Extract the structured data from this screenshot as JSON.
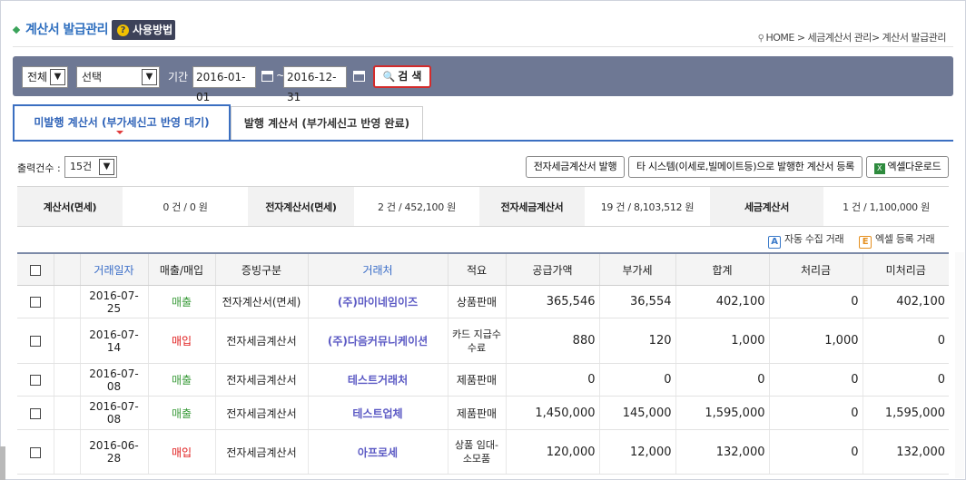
{
  "header": {
    "title": "계산서 발급관리",
    "help_label": "사용방법",
    "breadcrumb": [
      "HOME",
      "세금계산서 관리",
      "계산서 발급관리"
    ]
  },
  "search": {
    "type_select": "전체",
    "option_select": "선택",
    "period_label": "기간 :",
    "date_from": "2016-01-01",
    "date_to": "2016-12-31",
    "search_label": "검 색"
  },
  "tabs": [
    {
      "label": "미발행 계산서 (부가세신고 반영 대기)",
      "active": true
    },
    {
      "label": "발행 계산서 (부가세신고 반영 완료)",
      "active": false
    }
  ],
  "controls": {
    "count_label": "출력건수 :",
    "count_value": "15건",
    "btn_issue": "전자세금계산서 발행",
    "btn_register": "타 시스템(이세로,빌메이트등)으로 발행한 계산서 등록",
    "btn_excel": "엑셀다운로드"
  },
  "summary": [
    {
      "key": "계산서(면세)",
      "value": "0 건 / 0 원"
    },
    {
      "key": "전자계산서(면세)",
      "value": "2 건 / 452,100 원"
    },
    {
      "key": "전자세금계산서",
      "value": "19 건 / 8,103,512 원"
    },
    {
      "key": "세금계산서",
      "value": "1 건 / 1,100,000 원"
    }
  ],
  "legend": {
    "a_letter": "A",
    "a_label": "자동 수집 거래",
    "e_letter": "E",
    "e_label": "엑셀 등록 거래"
  },
  "table": {
    "headers": [
      "거래일자",
      "매출/매입",
      "증빙구분",
      "거래처",
      "적요",
      "공급가액",
      "부가세",
      "합계",
      "처리금",
      "미처리금"
    ],
    "rows": [
      {
        "date": "2016-07-25",
        "type": "매출",
        "proof": "전자계산서(면세)",
        "vendor": "(주)마이네임이즈",
        "memo": "상품판매",
        "supply": "365,546",
        "vat": "36,554",
        "total": "402,100",
        "done": "0",
        "pending": "402,100"
      },
      {
        "date": "2016-07-14",
        "type": "매입",
        "proof": "전자세금계산서",
        "vendor": "(주)다음커뮤니케이션",
        "memo": "카드 지급수수료",
        "supply": "880",
        "vat": "120",
        "total": "1,000",
        "done": "1,000",
        "pending": "0"
      },
      {
        "date": "2016-07-08",
        "type": "매출",
        "proof": "전자세금계산서",
        "vendor": "테스트거래처",
        "memo": "제품판매",
        "supply": "0",
        "vat": "0",
        "total": "0",
        "done": "0",
        "pending": "0"
      },
      {
        "date": "2016-07-08",
        "type": "매출",
        "proof": "전자세금계산서",
        "vendor": "테스트업체",
        "memo": "제품판매",
        "supply": "1,450,000",
        "vat": "145,000",
        "total": "1,595,000",
        "done": "0",
        "pending": "1,595,000"
      },
      {
        "date": "2016-06-28",
        "type": "매입",
        "proof": "전자세금계산서",
        "vendor": "아프로세",
        "memo": "상품 임대-소모품",
        "supply": "120,000",
        "vat": "12,000",
        "total": "132,000",
        "done": "0",
        "pending": "132,000"
      }
    ]
  },
  "colors": {
    "sale": "#3a9b3a",
    "buy": "#e02020",
    "accent": "#3b6fc1",
    "search_bar": "#6e7894"
  }
}
